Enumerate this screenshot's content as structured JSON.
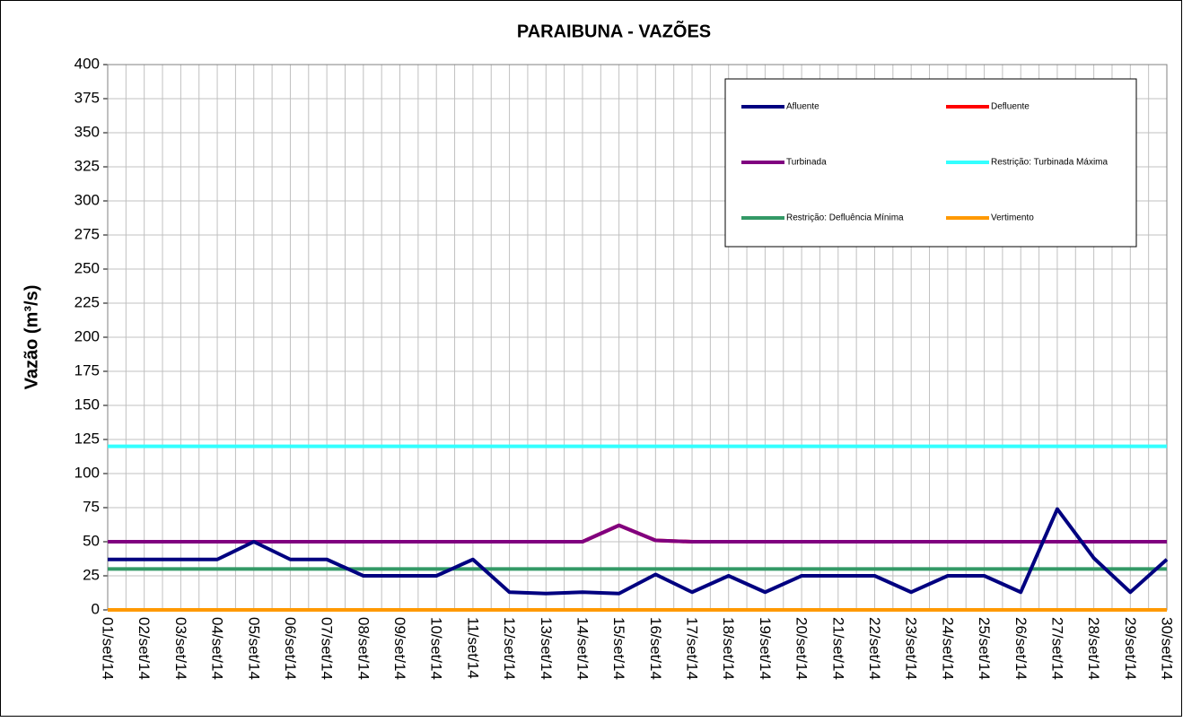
{
  "chart_data": {
    "type": "line",
    "title": "PARAIBUNA - VAZÕES",
    "y_label": "Vazão (m³/s)",
    "categories": [
      "01/set/14",
      "02/set/14",
      "03/set/14",
      "04/set/14",
      "05/set/14",
      "06/set/14",
      "07/set/14",
      "08/set/14",
      "09/set/14",
      "10/set/14",
      "11/set/14",
      "12/set/14",
      "13/set/14",
      "14/set/14",
      "15/set/14",
      "16/set/14",
      "17/set/14",
      "18/set/14",
      "19/set/14",
      "20/set/14",
      "21/set/14",
      "22/set/14",
      "23/set/14",
      "24/set/14",
      "25/set/14",
      "26/set/14",
      "27/set/14",
      "28/set/14",
      "29/set/14",
      "30/set/14"
    ],
    "series": [
      {
        "name": "Restrição: Turbinada Máxima",
        "color": "#33ffff",
        "values": [
          120,
          120,
          120,
          120,
          120,
          120,
          120,
          120,
          120,
          120,
          120,
          120,
          120,
          120,
          120,
          120,
          120,
          120,
          120,
          120,
          120,
          120,
          120,
          120,
          120,
          120,
          120,
          120,
          120,
          120
        ]
      },
      {
        "name": "Restrição: Defluência Mínima",
        "color": "#339966",
        "values": [
          30,
          30,
          30,
          30,
          30,
          30,
          30,
          30,
          30,
          30,
          30,
          30,
          30,
          30,
          30,
          30,
          30,
          30,
          30,
          30,
          30,
          30,
          30,
          30,
          30,
          30,
          30,
          30,
          30,
          30
        ]
      },
      {
        "name": "Vertimento",
        "color": "#ff9900",
        "values": [
          0,
          0,
          0,
          0,
          0,
          0,
          0,
          0,
          0,
          0,
          0,
          0,
          0,
          0,
          0,
          0,
          0,
          0,
          0,
          0,
          0,
          0,
          0,
          0,
          0,
          0,
          0,
          0,
          0,
          0
        ]
      },
      {
        "name": "Defluente",
        "color": "#ff0000",
        "values": [
          50,
          50,
          50,
          50,
          50,
          50,
          50,
          50,
          50,
          50,
          50,
          50,
          50,
          50,
          62,
          51,
          50,
          50,
          50,
          50,
          50,
          50,
          50,
          50,
          50,
          50,
          50,
          50,
          50,
          50
        ]
      },
      {
        "name": "Turbinada",
        "color": "#800080",
        "values": [
          50,
          50,
          50,
          50,
          50,
          50,
          50,
          50,
          50,
          50,
          50,
          50,
          50,
          50,
          62,
          51,
          50,
          50,
          50,
          50,
          50,
          50,
          50,
          50,
          50,
          50,
          50,
          50,
          50,
          50
        ]
      },
      {
        "name": "Afluente",
        "color": "#000080",
        "values": [
          37,
          37,
          37,
          37,
          50,
          37,
          37,
          25,
          25,
          25,
          37,
          13,
          12,
          13,
          12,
          26,
          13,
          25,
          13,
          25,
          25,
          25,
          13,
          25,
          25,
          13,
          74,
          38,
          13,
          37
        ]
      }
    ],
    "legend_order": [
      5,
      3,
      4,
      0,
      1,
      2
    ],
    "ylim": [
      0,
      400
    ],
    "yticks": [
      0,
      25,
      50,
      75,
      100,
      125,
      150,
      175,
      200,
      225,
      250,
      275,
      300,
      325,
      350,
      375,
      400
    ],
    "grid": true
  }
}
